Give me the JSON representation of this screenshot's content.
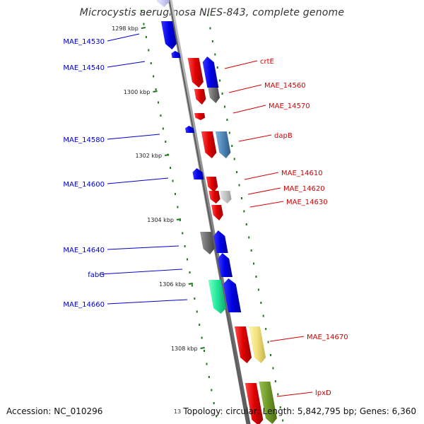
{
  "title": "Microcystis aeruginosa NIES-843, complete genome",
  "footer": {
    "accession": "Accession: NC_010296",
    "topology": "Topology: circular; Length: 5,842,795 bp; Genes: 6,360",
    "cut_tick": "13"
  },
  "colors": {
    "forward_label": "#d40000",
    "reverse_label": "#0000cc",
    "backbone": "#8c8c8c",
    "tick": "#1a7a1a",
    "ruler_text": "#222222"
  },
  "ruler_labels": [
    "1298 kbp",
    "1300 kbp",
    "1302 kbp",
    "1304 kbp",
    "1306 kbp",
    "1308 kbp"
  ],
  "gene_labels_left": [
    "MAE_14530",
    "MAE_14540",
    "MAE_14580",
    "MAE_14600",
    "MAE_14640",
    "fabG",
    "MAE_14660"
  ],
  "gene_labels_right": [
    "crtE",
    "MAE_14560",
    "MAE_14570",
    "dapB",
    "MAE_14610",
    "MAE_14620",
    "MAE_14630",
    "MAE_14670",
    "lpxD"
  ]
}
